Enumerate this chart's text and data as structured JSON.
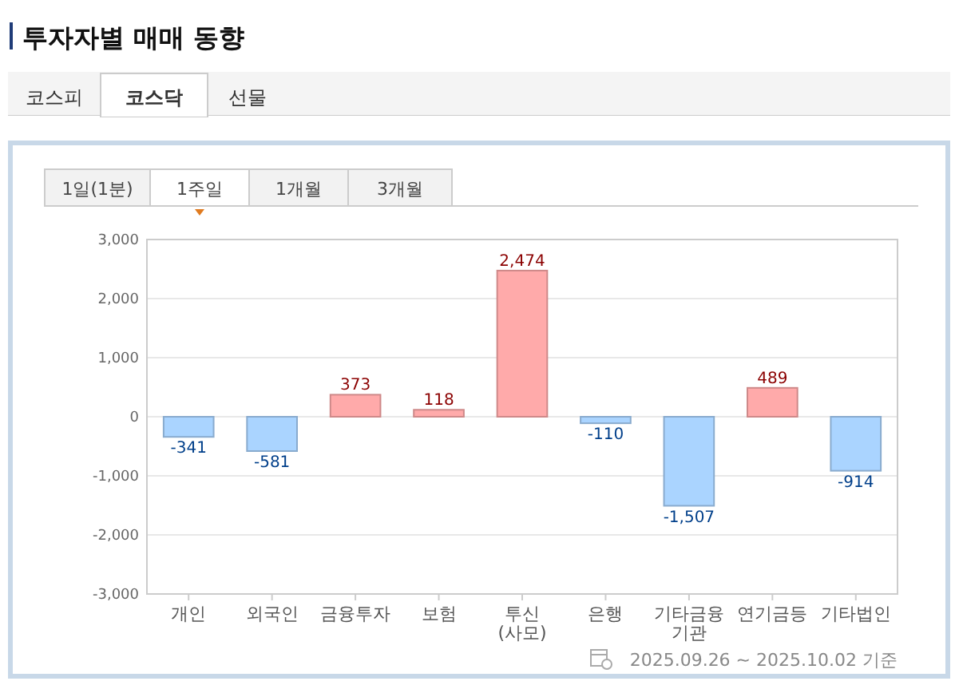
{
  "chart_data": {
    "type": "bar",
    "title": "투자자별 매매 동향",
    "categories": [
      "개인",
      "외국인",
      "금융투자",
      "보험",
      "투신(사모)",
      "은행",
      "기타금융기관",
      "연기금등",
      "기타법인"
    ],
    "values": [
      -341,
      -581,
      373,
      118,
      2474,
      -110,
      -1507,
      489,
      -914
    ],
    "colors": [
      "#aad4ff",
      "#aad4ff",
      "#ffaaaa",
      "#ffaaaa",
      "#ffaaaa",
      "#aad4ff",
      "#aad4ff",
      "#ffaaaa",
      "#aad4ff"
    ],
    "ylim": [
      -3000,
      3000
    ],
    "yticks": [
      {
        "value": -3000,
        "label": "-3,000"
      },
      {
        "value": -2000,
        "label": "-2,000"
      },
      {
        "value": -1000,
        "label": "-1,000"
      },
      0,
      {
        "value": 1000,
        "label": "1,000"
      },
      {
        "value": 2000,
        "label": "2,000"
      },
      {
        "value": 3000,
        "label": "3,000"
      }
    ],
    "grid": "y",
    "value_labels": [
      "-341",
      "-581",
      "373",
      "118",
      "2,474",
      "-110",
      "-1,507",
      "489",
      "-914"
    ],
    "annotations": [
      "코스피",
      "코스닥",
      "선물",
      "1일(1분)",
      "1주일",
      "1개월",
      "3개월",
      "2025.09.26 ~ 2025.10.02 기준"
    ]
  }
}
